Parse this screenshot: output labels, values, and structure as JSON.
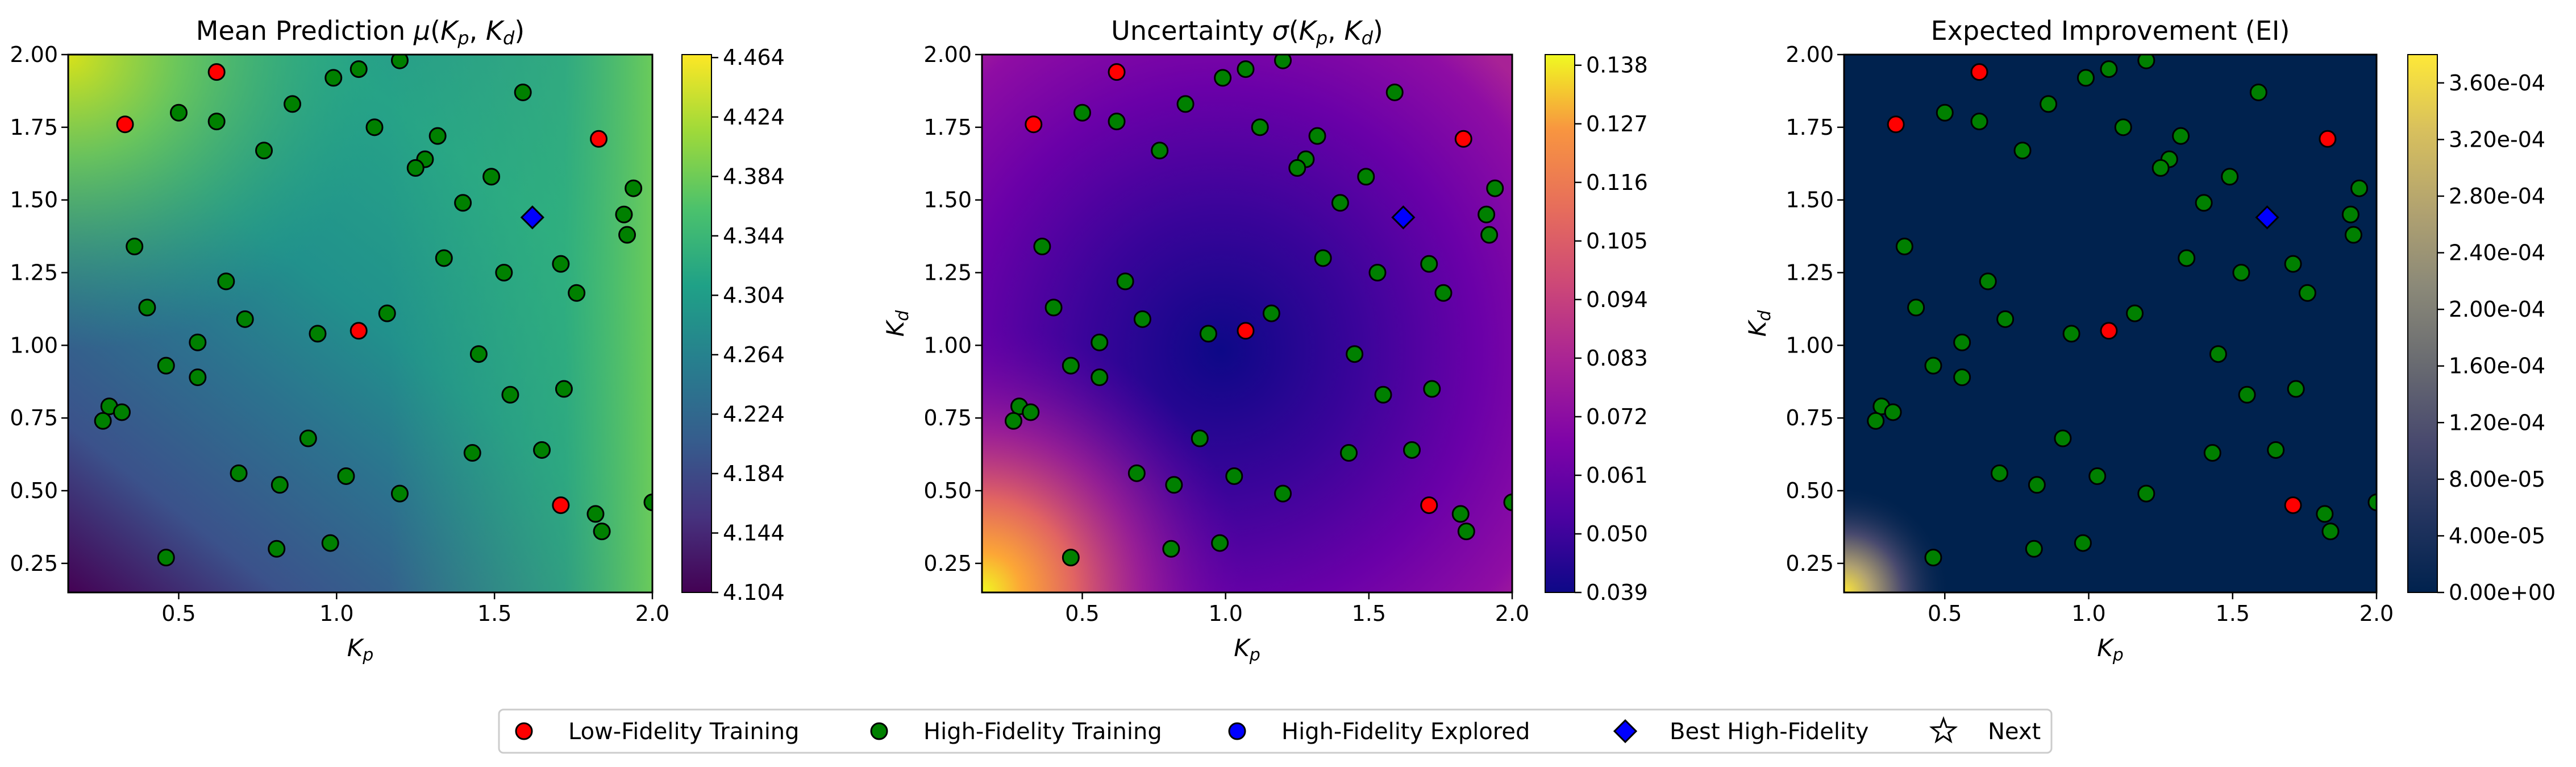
{
  "colors": {
    "low_fidelity": "#ff0000",
    "high_fidelity": "#008000",
    "explored": "#0000ff",
    "best": "#0000ff",
    "marker_edge": "#000000"
  },
  "legend": {
    "placement": "bottom-center",
    "items": [
      {
        "label": "Low-Fidelity Training",
        "marker": "circle",
        "color": "#ff0000"
      },
      {
        "label": "High-Fidelity Training",
        "marker": "circle",
        "color": "#008000"
      },
      {
        "label": "High-Fidelity Explored",
        "marker": "circle",
        "color": "#0000ff"
      },
      {
        "label": "Best High-Fidelity",
        "marker": "diamond",
        "color": "#0000ff"
      },
      {
        "label": "Next",
        "marker": "star",
        "color": "#ffffff"
      }
    ]
  },
  "chart_data": [
    {
      "type": "heatmap",
      "title": "Mean Prediction μ(Kp, Kd)",
      "colormap": "viridis",
      "xlabel": "Kp",
      "ylabel": "Kd",
      "xlim": [
        0.15,
        2.0
      ],
      "ylim": [
        0.15,
        2.0
      ],
      "xticks": [
        "0.5",
        "1.0",
        "1.5",
        "2.0"
      ],
      "yticks": [
        "0.25",
        "0.50",
        "0.75",
        "1.00",
        "1.25",
        "1.50",
        "1.75",
        "2.00"
      ],
      "colorbar_ticks": [
        "4.104",
        "4.144",
        "4.184",
        "4.224",
        "4.264",
        "4.304",
        "4.344",
        "4.384",
        "4.424",
        "4.464"
      ],
      "colorbar_range": [
        4.104,
        4.466
      ]
    },
    {
      "type": "heatmap",
      "title": "Uncertainty σ(Kp, Kd)",
      "colormap": "plasma",
      "xlabel": "Kp",
      "ylabel": "Kd",
      "xlim": [
        0.15,
        2.0
      ],
      "ylim": [
        0.15,
        2.0
      ],
      "xticks": [
        "0.5",
        "1.0",
        "1.5",
        "2.0"
      ],
      "yticks": [
        "0.25",
        "0.50",
        "0.75",
        "1.00",
        "1.25",
        "1.50",
        "1.75",
        "2.00"
      ],
      "colorbar_ticks": [
        "0.039",
        "0.050",
        "0.061",
        "0.072",
        "0.083",
        "0.094",
        "0.105",
        "0.116",
        "0.127",
        "0.138"
      ],
      "colorbar_range": [
        0.039,
        0.14
      ]
    },
    {
      "type": "heatmap",
      "title": "Expected Improvement (EI)",
      "colormap": "cividis",
      "xlabel": "Kp",
      "ylabel": "Kd",
      "xlim": [
        0.15,
        2.0
      ],
      "ylim": [
        0.15,
        2.0
      ],
      "xticks": [
        "0.5",
        "1.0",
        "1.5",
        "2.0"
      ],
      "yticks": [
        "0.25",
        "0.50",
        "0.75",
        "1.00",
        "1.25",
        "1.50",
        "1.75",
        "2.00"
      ],
      "colorbar_ticks": [
        "0.00e+00",
        "4.00e-05",
        "8.00e-05",
        "1.20e-04",
        "1.60e-04",
        "2.00e-04",
        "2.40e-04",
        "2.80e-04",
        "3.20e-04",
        "3.60e-04"
      ],
      "colorbar_range": [
        0.0,
        0.00038
      ]
    }
  ],
  "points": {
    "low_fidelity": [
      [
        0.33,
        1.76
      ],
      [
        0.62,
        1.94
      ],
      [
        1.07,
        1.05
      ],
      [
        1.83,
        1.71
      ],
      [
        1.71,
        0.45
      ]
    ],
    "high_fidelity": [
      [
        0.36,
        1.34
      ],
      [
        0.5,
        1.8
      ],
      [
        0.62,
        1.77
      ],
      [
        0.77,
        1.67
      ],
      [
        0.86,
        1.83
      ],
      [
        0.99,
        1.92
      ],
      [
        1.07,
        1.95
      ],
      [
        1.12,
        1.75
      ],
      [
        1.2,
        1.98
      ],
      [
        1.32,
        1.72
      ],
      [
        1.28,
        1.64
      ],
      [
        1.25,
        1.61
      ],
      [
        1.4,
        1.49
      ],
      [
        1.49,
        1.58
      ],
      [
        1.59,
        1.87
      ],
      [
        1.34,
        1.3
      ],
      [
        1.53,
        1.25
      ],
      [
        1.71,
        1.28
      ],
      [
        1.76,
        1.18
      ],
      [
        1.91,
        1.45
      ],
      [
        1.94,
        1.54
      ],
      [
        1.92,
        1.38
      ],
      [
        1.16,
        1.11
      ],
      [
        0.65,
        1.22
      ],
      [
        0.4,
        1.13
      ],
      [
        0.71,
        1.09
      ],
      [
        0.94,
        1.04
      ],
      [
        0.56,
        1.01
      ],
      [
        0.46,
        0.93
      ],
      [
        0.56,
        0.89
      ],
      [
        1.45,
        0.97
      ],
      [
        1.72,
        0.85
      ],
      [
        1.55,
        0.83
      ],
      [
        0.28,
        0.79
      ],
      [
        0.32,
        0.77
      ],
      [
        0.26,
        0.74
      ],
      [
        0.91,
        0.68
      ],
      [
        1.43,
        0.63
      ],
      [
        1.65,
        0.64
      ],
      [
        0.69,
        0.56
      ],
      [
        1.03,
        0.55
      ],
      [
        0.82,
        0.52
      ],
      [
        1.2,
        0.49
      ],
      [
        1.82,
        0.42
      ],
      [
        1.84,
        0.36
      ],
      [
        2.0,
        0.46
      ],
      [
        0.81,
        0.3
      ],
      [
        0.98,
        0.32
      ],
      [
        0.46,
        0.27
      ]
    ],
    "best": [
      [
        1.62,
        1.44
      ]
    ]
  }
}
